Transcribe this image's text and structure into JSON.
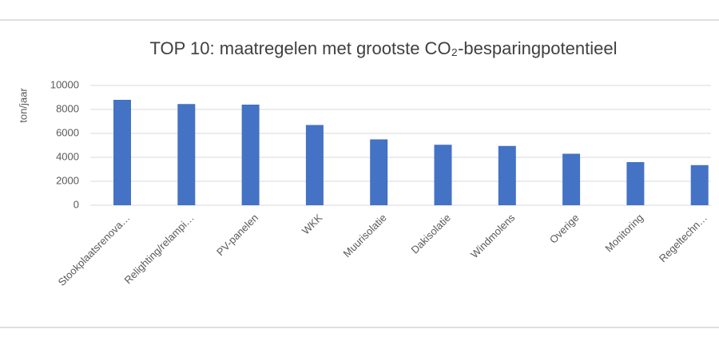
{
  "chart_data": {
    "type": "bar",
    "title": "TOP 10: maatregelen met grootste CO₂-besparingpotentieel",
    "y_label": "ton/jaar",
    "categories": [
      "Stookplaatsrenova…",
      "Relighting/relampi…",
      "PV-panelen",
      "WKK",
      "Muurisolatie",
      "Dakisolatie",
      "Windmolens",
      "Overige",
      "Monitoring",
      "Regeltechn…"
    ],
    "values": [
      8800,
      8450,
      8400,
      6700,
      5500,
      5050,
      4950,
      4300,
      3600,
      3350
    ],
    "color": "#4472c4",
    "ylim": [
      0,
      10000
    ],
    "yticks": [
      0,
      2000,
      4000,
      6000,
      8000,
      10000
    ],
    "grid": true
  }
}
